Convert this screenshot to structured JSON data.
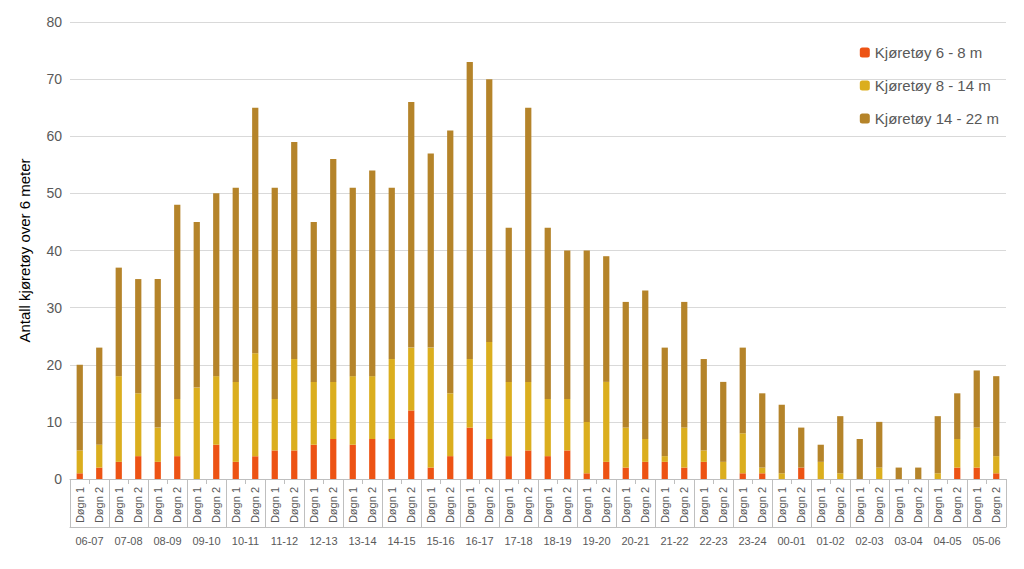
{
  "chart_data": {
    "type": "bar",
    "stacked": true,
    "grid": true,
    "legend": "upper right",
    "y_label": "Antall kjøretøy over 6 meter",
    "ylim": [
      0,
      80
    ],
    "yticks": [
      0,
      10,
      20,
      30,
      40,
      50,
      60,
      70,
      80
    ],
    "categories": [
      "Døgn 1",
      "Døgn 2",
      "Døgn 1",
      "Døgn 2",
      "Døgn 1",
      "Døgn 2",
      "Døgn 1",
      "Døgn 2",
      "Døgn 1",
      "Døgn 2",
      "Døgn 1",
      "Døgn 2",
      "Døgn 1",
      "Døgn 2",
      "Døgn 1",
      "Døgn 2",
      "Døgn 1",
      "Døgn 2",
      "Døgn 1",
      "Døgn 2",
      "Døgn 1",
      "Døgn 2",
      "Døgn 1",
      "Døgn 2",
      "Døgn 1",
      "Døgn 2",
      "Døgn 1",
      "Døgn 2",
      "Døgn 1",
      "Døgn 2",
      "Døgn 1",
      "Døgn 2",
      "Døgn 1",
      "Døgn 2",
      "Døgn 1",
      "Døgn 2",
      "Døgn 1",
      "Døgn 2",
      "Døgn 1",
      "Døgn 2",
      "Døgn 1",
      "Døgn 2",
      "Døgn 1",
      "Døgn 2",
      "Døgn 1",
      "Døgn 2",
      "Døgn 1",
      "Døgn 2"
    ],
    "category_groups": [
      "06-07",
      "07-08",
      "08-09",
      "09-10",
      "10-11",
      "11-12",
      "12-13",
      "13-14",
      "14-15",
      "15-16",
      "16-17",
      "17-18",
      "18-19",
      "19-20",
      "20-21",
      "21-22",
      "22-23",
      "23-24",
      "00-01",
      "01-02",
      "02-03",
      "03-04",
      "04-05",
      "05-06"
    ],
    "series": [
      {
        "name": "Kjøretøy 6 - 8 m",
        "color": "#ED5314",
        "values": [
          1,
          2,
          3,
          4,
          3,
          4,
          0,
          6,
          3,
          4,
          5,
          5,
          6,
          7,
          6,
          7,
          7,
          12,
          2,
          4,
          9,
          7,
          4,
          5,
          4,
          5,
          1,
          3,
          2,
          3,
          3,
          2,
          3,
          0,
          1,
          1,
          0,
          2,
          0,
          0,
          0,
          0,
          0,
          0,
          0,
          2,
          2,
          1
        ]
      },
      {
        "name": "Kjøretøy 8 - 14 m",
        "color": "#DBAE1E",
        "values": [
          4,
          4,
          15,
          11,
          6,
          10,
          16,
          12,
          14,
          18,
          9,
          16,
          11,
          10,
          12,
          11,
          14,
          11,
          21,
          11,
          12,
          17,
          13,
          12,
          10,
          9,
          9,
          14,
          7,
          4,
          1,
          7,
          2,
          3,
          7,
          1,
          1,
          0,
          3,
          1,
          0,
          2,
          0,
          0,
          1,
          5,
          7,
          3
        ]
      },
      {
        "name": "Kjøretøy 14 - 22 m",
        "color": "#B5842A",
        "values": [
          15,
          17,
          19,
          20,
          26,
          34,
          29,
          32,
          34,
          43,
          37,
          38,
          28,
          39,
          33,
          36,
          30,
          43,
          34,
          46,
          52,
          46,
          27,
          48,
          30,
          26,
          30,
          22,
          22,
          26,
          19,
          22,
          16,
          14,
          15,
          13,
          12,
          7,
          3,
          10,
          7,
          8,
          2,
          2,
          10,
          8,
          10,
          14
        ]
      }
    ]
  }
}
